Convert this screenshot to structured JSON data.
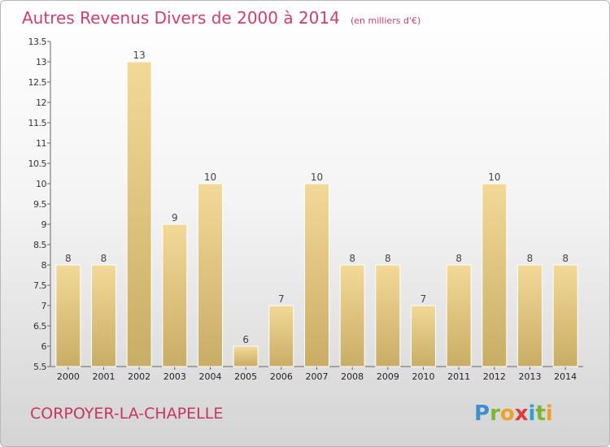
{
  "chart_data": {
    "type": "bar",
    "title": "Autres Revenus Divers de 2000 à 2014",
    "unit": "(en milliers d'€)",
    "categories": [
      "2000",
      "2001",
      "2002",
      "2003",
      "2004",
      "2005",
      "2006",
      "2007",
      "2008",
      "2009",
      "2010",
      "2011",
      "2012",
      "2013",
      "2014"
    ],
    "values": [
      8,
      8,
      13,
      9,
      10,
      6,
      7,
      10,
      8,
      8,
      7,
      8,
      10,
      8,
      8
    ],
    "ylim": [
      5.5,
      13.5
    ],
    "yticks": [
      "5.5",
      "6",
      "6.5",
      "7",
      "7.5",
      "8",
      "8.5",
      "9",
      "9.5",
      "10",
      "10.5",
      "11",
      "11.5",
      "12",
      "12.5",
      "13",
      "13.5"
    ],
    "grid": false,
    "legend": "none",
    "bar_color_top": "#f3d998",
    "bar_color_bottom": "#c8ad66"
  },
  "commune": "CORPOYER-LA-CHAPELLE",
  "brand": {
    "letters": [
      "P",
      "r",
      "o",
      "x",
      "i",
      "t",
      "i"
    ],
    "colors": [
      "#3f8fd0",
      "#7ab82f",
      "#f0a02a",
      "#e03a3a",
      "#2f9fd8",
      "#7ab82f",
      "#f0a02a"
    ]
  }
}
